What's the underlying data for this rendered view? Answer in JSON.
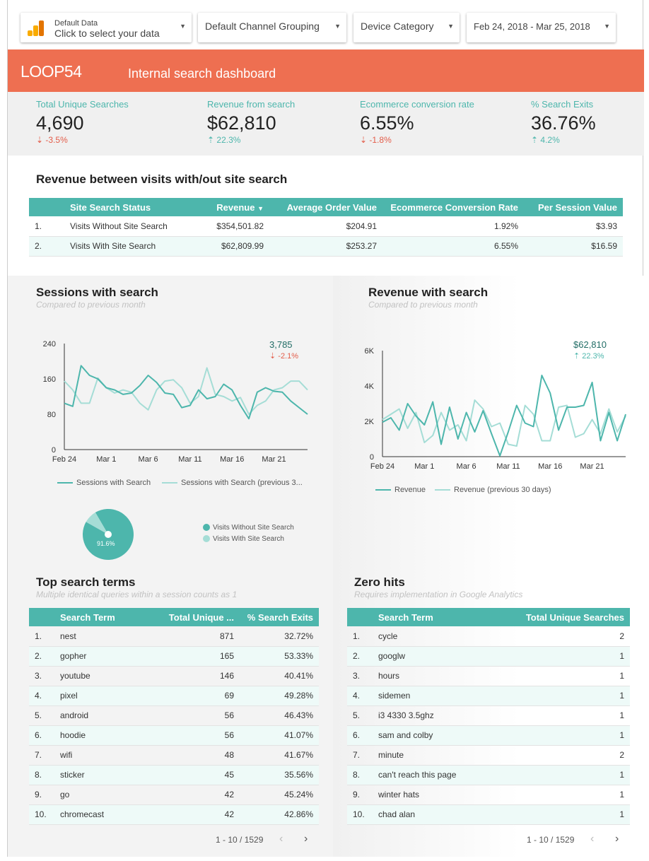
{
  "filters": {
    "data_source_line1": "Default Data",
    "data_source_line2": "Click to select your data",
    "channel": "Default Channel Grouping",
    "device": "Device Category",
    "date_range": "Feb 24, 2018 - Mar 25, 2018"
  },
  "banner": {
    "logo": "LOOP54",
    "title": "Internal search dashboard",
    "color": "#ee6f51"
  },
  "kpis": [
    {
      "label": "Total Unique Searches",
      "value": "4,690",
      "delta": "-3.5%",
      "dir": "down"
    },
    {
      "label": "Revenue from search",
      "value": "$62,810",
      "delta": "22.3%",
      "dir": "up"
    },
    {
      "label": "Ecommerce conversion rate",
      "value": "6.55%",
      "delta": "-1.8%",
      "dir": "down"
    },
    {
      "label": "% Search Exits",
      "value": "36.76%",
      "delta": "4.2%",
      "dir": "up"
    }
  ],
  "revenue_table": {
    "title": "Revenue between visits with/out site search",
    "headers": [
      "Site Search Status",
      "Revenue",
      "Average Order Value",
      "Ecommerce Conversion Rate",
      "Per Session Value"
    ],
    "rows": [
      [
        "1.",
        "Visits Without Site Search",
        "$354,501.82",
        "$204.91",
        "1.92%",
        "$3.93"
      ],
      [
        "2.",
        "Visits With Site Search",
        "$62,809.99",
        "$253.27",
        "6.55%",
        "$16.59"
      ]
    ]
  },
  "sessions_chart": {
    "title": "Sessions with search",
    "subtitle": "Compared to previous month",
    "callout_value": "3,785",
    "callout_delta": "-2.1%",
    "legend": [
      "Sessions with Search",
      "Sessions with Search (previous 3..."
    ]
  },
  "revenue_chart": {
    "title": "Revenue with search",
    "subtitle": "Compared to previous month",
    "callout_value": "$62,810",
    "callout_delta": "22.3%",
    "legend": [
      "Revenue",
      "Revenue (previous 30 days)"
    ]
  },
  "pie": {
    "label": "91.6%",
    "legend": [
      "Visits Without Site Search",
      "Visits With Site Search"
    ]
  },
  "top_terms": {
    "title": "Top search terms",
    "subtitle": "Multiple identical queries within a session counts as 1",
    "headers": [
      "Search Term",
      "Total Unique ...",
      "% Search Exits"
    ],
    "rows": [
      [
        "1.",
        "nest",
        "871",
        "32.72%"
      ],
      [
        "2.",
        "gopher",
        "165",
        "53.33%"
      ],
      [
        "3.",
        "youtube",
        "146",
        "40.41%"
      ],
      [
        "4.",
        "pixel",
        "69",
        "49.28%"
      ],
      [
        "5.",
        "android",
        "56",
        "46.43%"
      ],
      [
        "6.",
        "hoodie",
        "56",
        "41.07%"
      ],
      [
        "7.",
        "wifi",
        "48",
        "41.67%"
      ],
      [
        "8.",
        "sticker",
        "45",
        "35.56%"
      ],
      [
        "9.",
        "go",
        "42",
        "45.24%"
      ],
      [
        "10.",
        "chromecast",
        "42",
        "42.86%"
      ]
    ],
    "pager": "1 - 10 / 1529"
  },
  "zero_hits": {
    "title": "Zero hits",
    "subtitle": "Requires implementation in Google Analytics",
    "headers": [
      "Search Term",
      "Total Unique Searches"
    ],
    "rows": [
      [
        "1.",
        "cycle",
        "2"
      ],
      [
        "2.",
        "googlw",
        "1"
      ],
      [
        "3.",
        "hours",
        "1"
      ],
      [
        "4.",
        "sidemen",
        "1"
      ],
      [
        "5.",
        "i3 4330 3.5ghz",
        "1"
      ],
      [
        "6.",
        "sam and colby",
        "1"
      ],
      [
        "7.",
        "minute",
        "2"
      ],
      [
        "8.",
        "can't reach this page",
        "1"
      ],
      [
        "9.",
        "winter hats",
        "1"
      ],
      [
        "10.",
        "chad alan",
        "1"
      ]
    ],
    "pager": "1 - 10 / 1529"
  },
  "chart_data": [
    {
      "type": "line",
      "title": "Sessions with search",
      "x": [
        "Feb 24",
        "Feb 25",
        "Feb 26",
        "Feb 27",
        "Feb 28",
        "Mar 1",
        "Mar 2",
        "Mar 3",
        "Mar 4",
        "Mar 5",
        "Mar 6",
        "Mar 7",
        "Mar 8",
        "Mar 9",
        "Mar 10",
        "Mar 11",
        "Mar 12",
        "Mar 13",
        "Mar 14",
        "Mar 15",
        "Mar 16",
        "Mar 17",
        "Mar 18",
        "Mar 19",
        "Mar 20",
        "Mar 21",
        "Mar 22",
        "Mar 23",
        "Mar 24",
        "Mar 25"
      ],
      "xticks": [
        "Feb 24",
        "Mar 1",
        "Mar 6",
        "Mar 11",
        "Mar 16",
        "Mar 21"
      ],
      "yticks": [
        "0",
        "80",
        "160",
        "240"
      ],
      "ylim": [
        0,
        240
      ],
      "series": [
        {
          "name": "Sessions with Search",
          "values": [
            105,
            98,
            190,
            168,
            160,
            140,
            135,
            125,
            128,
            145,
            168,
            152,
            128,
            125,
            95,
            100,
            135,
            115,
            120,
            148,
            135,
            100,
            70,
            130,
            140,
            132,
            130,
            110,
            95,
            80
          ],
          "color": "#4db6ac"
        },
        {
          "name": "Sessions with Search (previous 3...",
          "values": [
            155,
            135,
            105,
            105,
            162,
            140,
            128,
            135,
            130,
            105,
            90,
            135,
            155,
            158,
            140,
            105,
            120,
            185,
            125,
            120,
            110,
            118,
            80,
            100,
            110,
            135,
            140,
            155,
            155,
            135
          ],
          "color": "#a5ddd6"
        }
      ]
    },
    {
      "type": "line",
      "title": "Revenue with search",
      "x": [
        "Feb 24",
        "Feb 25",
        "Feb 26",
        "Feb 27",
        "Feb 28",
        "Mar 1",
        "Mar 2",
        "Mar 3",
        "Mar 4",
        "Mar 5",
        "Mar 6",
        "Mar 7",
        "Mar 8",
        "Mar 9",
        "Mar 10",
        "Mar 11",
        "Mar 12",
        "Mar 13",
        "Mar 14",
        "Mar 15",
        "Mar 16",
        "Mar 17",
        "Mar 18",
        "Mar 19",
        "Mar 20",
        "Mar 21",
        "Mar 22",
        "Mar 23",
        "Mar 24",
        "Mar 25"
      ],
      "xticks": [
        "Feb 24",
        "Mar 1",
        "Mar 6",
        "Mar 11",
        "Mar 16",
        "Mar 21"
      ],
      "yticks": [
        "0",
        "2K",
        "4K",
        "6K"
      ],
      "ylim": [
        0,
        6000
      ],
      "series": [
        {
          "name": "Revenue",
          "values": [
            1950,
            2200,
            1500,
            3000,
            2300,
            1800,
            3100,
            700,
            2800,
            1000,
            2500,
            1400,
            2600,
            1300,
            50,
            1400,
            2900,
            1900,
            1700,
            4600,
            3600,
            1500,
            2800,
            2800,
            2900,
            4200,
            900,
            2500,
            900,
            2400
          ],
          "color": "#4db6ac"
        },
        {
          "name": "Revenue (previous 30 days)",
          "values": [
            2100,
            2400,
            2700,
            1600,
            2500,
            800,
            1200,
            2500,
            1500,
            1800,
            900,
            3200,
            2700,
            1700,
            1900,
            700,
            600,
            2900,
            2400,
            900,
            900,
            2800,
            2900,
            1100,
            1300,
            2100,
            1300,
            2700,
            1400,
            2300
          ],
          "color": "#a5ddd6"
        }
      ]
    },
    {
      "type": "pie",
      "categories": [
        "Visits Without Site Search",
        "Visits With Site Search"
      ],
      "values": [
        91.6,
        8.4
      ],
      "colors": [
        "#4db6ac",
        "#a5ddd6"
      ]
    }
  ]
}
